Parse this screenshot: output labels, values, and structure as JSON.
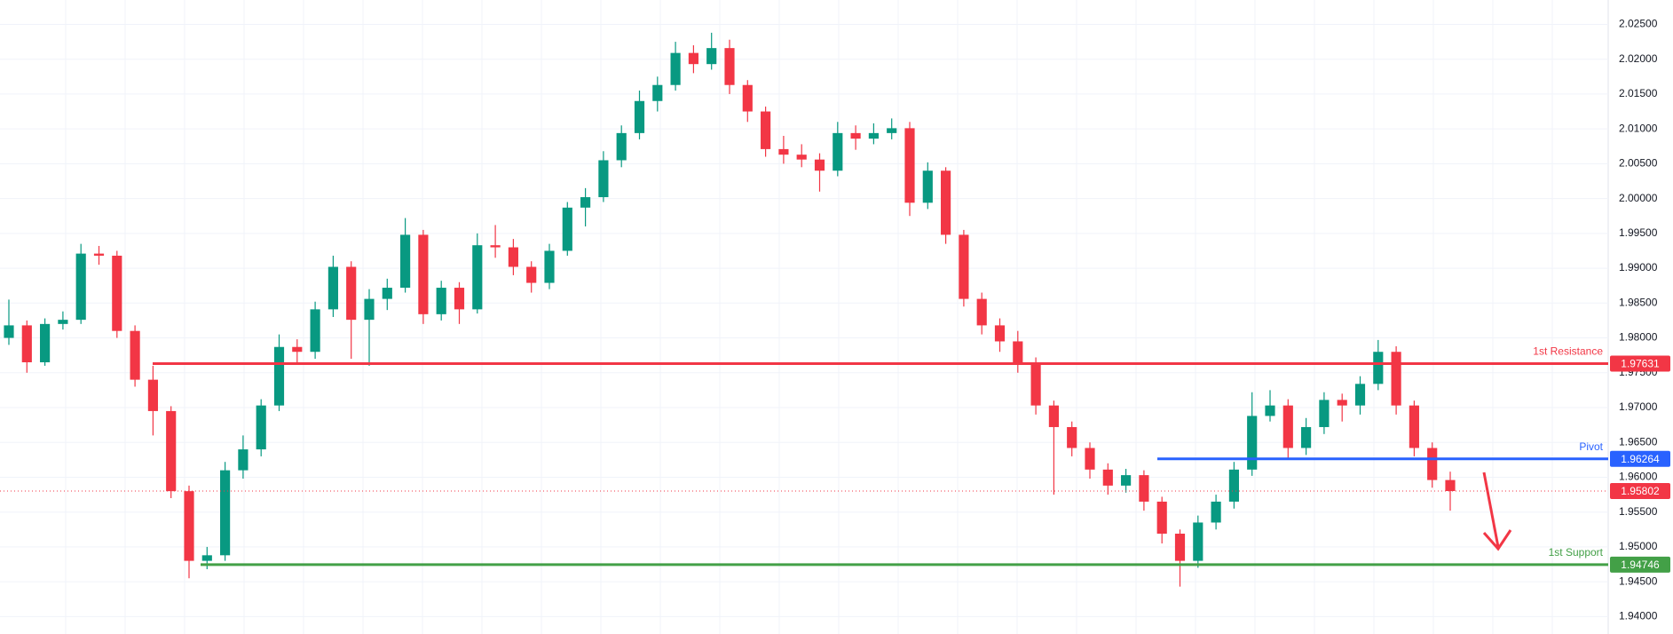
{
  "chart_data": {
    "type": "candlestick",
    "up_color": "#089981",
    "down_color": "#f23645",
    "open": [
      1.98,
      1.9818,
      1.9765,
      1.982,
      1.9826,
      1.9921,
      1.9918,
      1.981,
      1.974,
      1.9695,
      1.958,
      1.948,
      1.9488,
      1.961,
      1.964,
      1.9703,
      1.9787,
      1.978,
      1.9841,
      1.9902,
      1.9826,
      1.9856,
      1.9872,
      1.9948,
      1.9834,
      1.9872,
      1.9841,
      1.9933,
      1.993,
      1.9902,
      1.9879,
      1.9925,
      1.9987,
      2.0002,
      2.0055,
      2.0094,
      2.014,
      2.0163,
      2.0209,
      2.0193,
      2.0216,
      2.0163,
      2.0125,
      2.0071,
      2.0063,
      2.0056,
      2.004,
      2.0094,
      2.0086,
      2.0094,
      2.0101,
      1.9994,
      2.004,
      1.9948,
      1.9856,
      1.9818,
      1.9795,
      1.9765,
      1.9703,
      1.9672,
      1.9642,
      1.9611,
      1.9588,
      1.9603,
      1.9565,
      1.9519,
      1.948,
      1.9535,
      1.9565,
      1.9611,
      1.9688,
      1.9703,
      1.9642,
      1.9672,
      1.9711,
      1.9703,
      1.9734,
      1.978,
      1.9703,
      1.9642,
      1.9596
    ],
    "high": [
      1.9855,
      1.9825,
      1.9828,
      1.9838,
      1.9935,
      1.9932,
      1.9925,
      1.9818,
      1.976,
      1.9702,
      1.9588,
      1.95,
      1.9622,
      1.966,
      1.9712,
      1.9805,
      1.9798,
      1.9852,
      1.9918,
      1.991,
      1.987,
      1.9885,
      1.9972,
      1.9955,
      1.9882,
      1.988,
      1.995,
      1.9962,
      1.9942,
      1.991,
      1.9935,
      1.9995,
      2.0015,
      2.0068,
      2.0105,
      2.0155,
      2.0175,
      2.0225,
      2.022,
      2.0238,
      2.0228,
      2.017,
      2.0132,
      2.009,
      2.0078,
      2.0065,
      2.011,
      2.0105,
      2.0108,
      2.0115,
      2.011,
      2.0052,
      2.0045,
      1.9955,
      1.9865,
      1.9828,
      1.981,
      1.9772,
      1.971,
      1.968,
      1.965,
      1.962,
      1.9612,
      1.961,
      1.9572,
      1.9525,
      1.9545,
      1.9575,
      1.9622,
      1.9722,
      1.9725,
      1.9712,
      1.9685,
      1.9722,
      1.972,
      1.9745,
      1.9797,
      1.9788,
      1.971,
      1.965,
      1.9608
    ],
    "low": [
      1.979,
      1.975,
      1.976,
      1.9812,
      1.982,
      1.9905,
      1.98,
      1.973,
      1.966,
      1.957,
      1.9455,
      1.9468,
      1.948,
      1.9598,
      1.963,
      1.9695,
      1.9765,
      1.977,
      1.983,
      1.977,
      1.976,
      1.984,
      1.9865,
      1.982,
      1.9825,
      1.982,
      1.9835,
      1.9915,
      1.989,
      1.9865,
      1.987,
      1.9918,
      1.996,
      1.9995,
      2.0045,
      2.0085,
      2.0125,
      2.0155,
      2.018,
      2.0185,
      2.015,
      2.011,
      2.006,
      2.005,
      2.0045,
      2.001,
      2.0032,
      2.007,
      2.0078,
      2.0085,
      1.9975,
      1.9985,
      1.9935,
      1.9845,
      1.9805,
      1.978,
      1.975,
      1.969,
      1.9575,
      1.963,
      1.9598,
      1.9575,
      1.9578,
      1.9552,
      1.9505,
      1.9443,
      1.947,
      1.9525,
      1.9555,
      1.9602,
      1.968,
      1.9625,
      1.9632,
      1.9662,
      1.968,
      1.969,
      1.9725,
      1.969,
      1.963,
      1.9585,
      1.9552
    ],
    "close": [
      1.9818,
      1.9765,
      1.982,
      1.9826,
      1.9921,
      1.9918,
      1.981,
      1.974,
      1.9695,
      1.958,
      1.948,
      1.9488,
      1.961,
      1.964,
      1.9703,
      1.9787,
      1.978,
      1.9841,
      1.9902,
      1.9826,
      1.9856,
      1.9872,
      1.9948,
      1.9834,
      1.9872,
      1.9841,
      1.9933,
      1.993,
      1.9902,
      1.9879,
      1.9925,
      1.9987,
      2.0002,
      2.0055,
      2.0094,
      2.014,
      2.0163,
      2.0209,
      2.0193,
      2.0216,
      2.0163,
      2.0125,
      2.0071,
      2.0063,
      2.0056,
      2.004,
      2.0094,
      2.0086,
      2.0094,
      2.0101,
      1.9994,
      2.004,
      1.9948,
      1.9856,
      1.9818,
      1.9795,
      1.9765,
      1.9703,
      1.9672,
      1.9642,
      1.9611,
      1.9588,
      1.9603,
      1.9565,
      1.9519,
      1.948,
      1.9535,
      1.9565,
      1.9611,
      1.9688,
      1.9703,
      1.9642,
      1.9672,
      1.9711,
      1.9703,
      1.9734,
      1.978,
      1.9703,
      1.9642,
      1.9596,
      1.95802
    ],
    "ylim": [
      1.9375,
      2.0285
    ],
    "yticks": [
      {
        "value": 1.94,
        "label": "1.94000"
      },
      {
        "value": 1.945,
        "label": "1.94500"
      },
      {
        "value": 1.95,
        "label": "1.95000"
      },
      {
        "value": 1.955,
        "label": "1.95500"
      },
      {
        "value": 1.96,
        "label": "1.96000"
      },
      {
        "value": 1.965,
        "label": "1.96500"
      },
      {
        "value": 1.97,
        "label": "1.97000"
      },
      {
        "value": 1.975,
        "label": "1.97500"
      },
      {
        "value": 1.98,
        "label": "1.98000"
      },
      {
        "value": 1.985,
        "label": "1.98500"
      },
      {
        "value": 1.99,
        "label": "1.99000"
      },
      {
        "value": 1.995,
        "label": "1.99500"
      },
      {
        "value": 2.0,
        "label": "2.00000"
      },
      {
        "value": 2.005,
        "label": "2.00500"
      },
      {
        "value": 2.01,
        "label": "2.01000"
      },
      {
        "value": 2.015,
        "label": "2.01500"
      },
      {
        "value": 2.02,
        "label": "2.02000"
      },
      {
        "value": 2.025,
        "label": "2.02500"
      }
    ],
    "grid": true,
    "levels": [
      {
        "name": "1st Resistance",
        "value": 1.97631,
        "color": "#f23645"
      },
      {
        "name": "Pivot",
        "value": 1.96264,
        "color": "#2962ff"
      },
      {
        "name": "1st Support",
        "value": 1.94746,
        "color": "#43a047"
      }
    ],
    "current_price": {
      "value": 1.95802,
      "color": "#f23645"
    }
  }
}
